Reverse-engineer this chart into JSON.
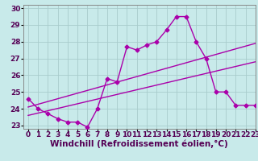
{
  "title": "",
  "xlabel": "Windchill (Refroidissement éolien,°C)",
  "ylabel": "",
  "background_color": "#c8eaea",
  "grid_color": "#a8cccc",
  "line_color": "#aa00aa",
  "xlim": [
    -0.5,
    23
  ],
  "ylim": [
    22.8,
    30.2
  ],
  "yticks": [
    23,
    24,
    25,
    26,
    27,
    28,
    29,
    30
  ],
  "xticks": [
    0,
    1,
    2,
    3,
    4,
    5,
    6,
    7,
    8,
    9,
    10,
    11,
    12,
    13,
    14,
    15,
    16,
    17,
    18,
    19,
    20,
    21,
    22,
    23
  ],
  "line1_x": [
    0,
    1,
    2,
    3,
    4,
    5,
    6,
    7,
    8,
    9,
    10,
    11,
    12,
    13,
    14,
    15,
    16,
    17,
    18,
    19,
    20,
    21,
    22,
    23
  ],
  "line1_y": [
    24.6,
    24.0,
    23.7,
    23.4,
    23.2,
    23.2,
    22.9,
    24.0,
    25.8,
    25.6,
    27.7,
    27.5,
    27.8,
    28.0,
    28.7,
    29.5,
    29.5,
    28.0,
    27.0,
    25.0,
    25.0,
    24.2,
    24.2,
    24.2
  ],
  "line2_x": [
    0,
    23
  ],
  "line2_y": [
    24.1,
    27.9
  ],
  "line3_x": [
    0,
    23
  ],
  "line3_y": [
    23.6,
    26.8
  ],
  "xlabel_fontsize": 7.5,
  "tick_fontsize": 6.5,
  "marker": "D",
  "marker_size": 2.5,
  "line_width": 1.0
}
